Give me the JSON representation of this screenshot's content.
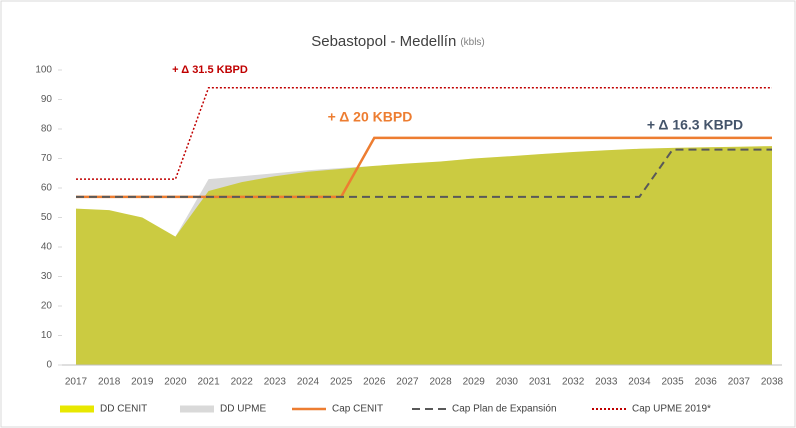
{
  "chart_data": {
    "type": "line",
    "title": "Sebastopol - Medellín",
    "subtitle": "(kbls)",
    "categories": [
      "2017",
      "2018",
      "2019",
      "2020",
      "2021",
      "2022",
      "2023",
      "2024",
      "2025",
      "2026",
      "2027",
      "2028",
      "2029",
      "2030",
      "2031",
      "2032",
      "2033",
      "2034",
      "2035",
      "2036",
      "2037",
      "2038"
    ],
    "series": [
      {
        "name": "DD CENIT",
        "color": "#e8e800",
        "style": "area",
        "values": [
          53,
          52.5,
          50,
          43.5,
          59,
          62,
          64,
          65.5,
          66.5,
          67.5,
          68.3,
          69,
          70,
          70.7,
          71.5,
          72.2,
          72.8,
          73.3,
          73.6,
          73.8,
          74,
          74.2
        ]
      },
      {
        "name": "DD UPME",
        "color": "#d9d9d9",
        "style": "area",
        "values": [
          53,
          52.5,
          50,
          43.5,
          63,
          64,
          65,
          66,
          66.8,
          67.5,
          68.3,
          69,
          70,
          70.7,
          71.5,
          72.2,
          72.8,
          73.3,
          73.6,
          73.8,
          74,
          74.2
        ]
      },
      {
        "name": "Cap CENIT",
        "color": "#ed7d31",
        "style": "solid",
        "values": [
          57,
          57,
          57,
          57,
          57,
          57,
          57,
          57,
          57,
          77,
          77,
          77,
          77,
          77,
          77,
          77,
          77,
          77,
          77,
          77,
          77,
          77
        ]
      },
      {
        "name": "Cap Plan de Expansión",
        "color": "#595959",
        "style": "dashed",
        "values": [
          57,
          57,
          57,
          57,
          57,
          57,
          57,
          57,
          57,
          57,
          57,
          57,
          57,
          57,
          57,
          57,
          57,
          57,
          73,
          73,
          73,
          73
        ]
      },
      {
        "name": "Cap UPME 2019*",
        "color": "#c00000",
        "style": "dotted",
        "values": [
          63,
          63,
          63,
          63,
          94,
          94,
          94,
          94,
          94,
          94,
          94,
          94,
          94,
          94,
          94,
          94,
          94,
          94,
          94,
          94,
          94,
          94
        ]
      }
    ],
    "annotations": [
      {
        "text": "+ Δ 31.5 KBPD",
        "color": "#c00000"
      },
      {
        "text": "+ Δ 20 KBPD",
        "color": "#ed7d31"
      },
      {
        "text": "+ Δ 16.3 KBPD",
        "color": "#44546a"
      }
    ],
    "ylim": [
      0,
      100
    ],
    "yticks": [
      0,
      10,
      20,
      30,
      40,
      50,
      60,
      70,
      80,
      90,
      100
    ],
    "grid": false
  }
}
